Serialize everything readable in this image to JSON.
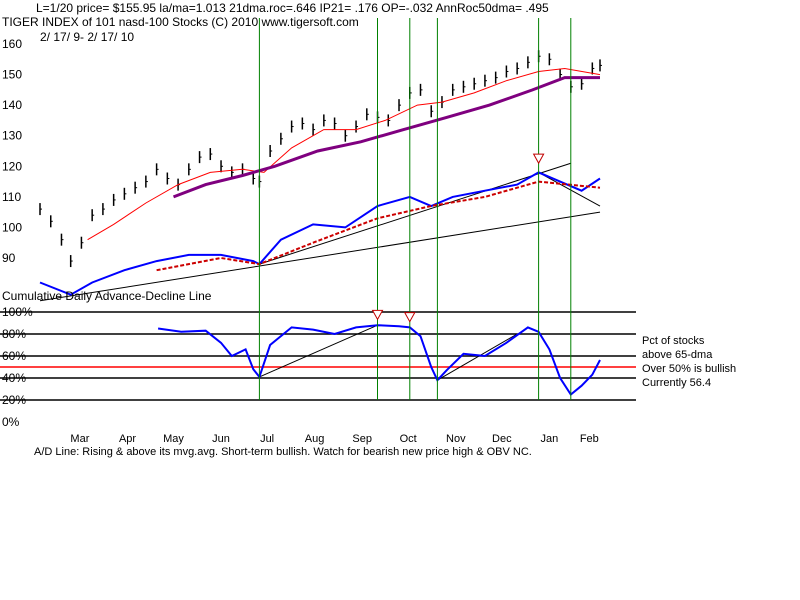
{
  "header": {
    "line1": "L=1/20  price= $155.95  la/ma=1.013 21dma.roc=.646 IP21= .176 OP=-.032 AnnRoc50dma= .495",
    "line2": "TIGER INDEX of  101 nasd-100 Stocks  (C) 2010  www.tigersoft.com",
    "line3": "2/ 17/ 9- 2/ 17/ 10"
  },
  "upper_panel": {
    "y_tick_labels": [
      "160",
      "150",
      "140",
      "130",
      "120",
      "110",
      "100",
      "90"
    ]
  },
  "lower_panel": {
    "title": "Cumulative Daily Advance-Decline Line",
    "y_tick_labels": [
      "100%",
      "80%",
      "60%",
      "40%",
      "20%",
      "0%"
    ],
    "annotations": [
      "Pct of stocks",
      "above 65-dma",
      "Over 50% is bullish",
      "Currently  56.4"
    ]
  },
  "x_axis": {
    "month_labels": [
      "Mar",
      "Apr",
      "May",
      "Jun",
      "Jul",
      "Aug",
      "Sep",
      "Oct",
      "Nov",
      "Dec",
      "Jan",
      "Feb"
    ]
  },
  "footer": "A/D Line: Rising & above its mvg.avg. Short-term bullish. Watch for bearish new price high & OBV NC.",
  "colors": {
    "price_bars": "#000000",
    "ma_21": "#ff0000",
    "ma_65": "#7f007f",
    "ad_line": "#0000ff",
    "ad_ma": "#cc0000",
    "pct_line": "#0000ff",
    "bullish_line": "#ff0000",
    "signal_lines": "#008000"
  },
  "chart_data": [
    {
      "type": "line",
      "panel": "upper",
      "title": "TIGER INDEX of  101 nasd-100 Stocks  (C) 2010  www.tigersoft.com",
      "x_range": [
        "2009-02-17",
        "2010-02-17"
      ],
      "ylim": [
        85,
        163
      ],
      "y_ticks": [
        90,
        100,
        110,
        120,
        130,
        140,
        150,
        160
      ],
      "series": [
        {
          "key": "price",
          "style": "hl-bars",
          "points": [
            [
              "2009-02-17",
              106
            ],
            [
              "2009-02-24",
              102
            ],
            [
              "2009-03-03",
              96
            ],
            [
              "2009-03-09",
              89
            ],
            [
              "2009-03-16",
              95
            ],
            [
              "2009-03-23",
              104
            ],
            [
              "2009-03-30",
              106
            ],
            [
              "2009-04-06",
              109
            ],
            [
              "2009-04-13",
              111
            ],
            [
              "2009-04-20",
              113
            ],
            [
              "2009-04-27",
              115
            ],
            [
              "2009-05-04",
              119
            ],
            [
              "2009-05-11",
              116
            ],
            [
              "2009-05-18",
              114
            ],
            [
              "2009-05-25",
              119
            ],
            [
              "2009-06-01",
              123
            ],
            [
              "2009-06-08",
              124
            ],
            [
              "2009-06-15",
              120
            ],
            [
              "2009-06-22",
              118
            ],
            [
              "2009-06-29",
              119
            ],
            [
              "2009-07-06",
              116
            ],
            [
              "2009-07-10",
              115
            ],
            [
              "2009-07-17",
              125
            ],
            [
              "2009-07-24",
              129
            ],
            [
              "2009-07-31",
              133
            ],
            [
              "2009-08-07",
              134
            ],
            [
              "2009-08-14",
              132
            ],
            [
              "2009-08-21",
              135
            ],
            [
              "2009-08-28",
              134
            ],
            [
              "2009-09-04",
              130
            ],
            [
              "2009-09-11",
              133
            ],
            [
              "2009-09-18",
              137
            ],
            [
              "2009-09-25",
              136
            ],
            [
              "2009-10-02",
              135
            ],
            [
              "2009-10-09",
              140
            ],
            [
              "2009-10-16",
              144
            ],
            [
              "2009-10-23",
              145
            ],
            [
              "2009-10-30",
              138
            ],
            [
              "2009-11-06",
              141
            ],
            [
              "2009-11-13",
              145
            ],
            [
              "2009-11-20",
              146
            ],
            [
              "2009-11-27",
              147
            ],
            [
              "2009-12-04",
              148
            ],
            [
              "2009-12-11",
              149
            ],
            [
              "2009-12-18",
              151
            ],
            [
              "2009-12-25",
              152
            ],
            [
              "2010-01-01",
              154
            ],
            [
              "2010-01-08",
              156
            ],
            [
              "2010-01-15",
              155
            ],
            [
              "2010-01-22",
              150
            ],
            [
              "2010-01-29",
              146
            ],
            [
              "2010-02-05",
              147
            ],
            [
              "2010-02-12",
              152
            ],
            [
              "2010-02-17",
              153
            ]
          ]
        },
        {
          "key": "ma21",
          "points": [
            [
              "2009-03-20",
              96
            ],
            [
              "2009-04-06",
              101
            ],
            [
              "2009-04-27",
              108
            ],
            [
              "2009-05-18",
              114
            ],
            [
              "2009-06-08",
              118
            ],
            [
              "2009-06-29",
              119
            ],
            [
              "2009-07-13",
              118
            ],
            [
              "2009-07-31",
              126
            ],
            [
              "2009-08-21",
              132
            ],
            [
              "2009-09-11",
              132
            ],
            [
              "2009-09-30",
              135
            ],
            [
              "2009-10-21",
              140
            ],
            [
              "2009-11-06",
              141
            ],
            [
              "2009-11-27",
              144
            ],
            [
              "2009-12-18",
              148
            ],
            [
              "2010-01-08",
              151
            ],
            [
              "2010-01-25",
              152
            ],
            [
              "2010-02-17",
              150
            ]
          ]
        },
        {
          "key": "ma65",
          "points": [
            [
              "2009-05-15",
              110
            ],
            [
              "2009-06-05",
              114
            ],
            [
              "2009-06-29",
              117
            ],
            [
              "2009-07-20",
              120
            ],
            [
              "2009-08-17",
              125
            ],
            [
              "2009-09-14",
              128
            ],
            [
              "2009-10-12",
              132
            ],
            [
              "2009-11-09",
              136
            ],
            [
              "2009-12-07",
              140
            ],
            [
              "2010-01-04",
              145
            ],
            [
              "2010-01-25",
              149
            ],
            [
              "2010-02-17",
              149
            ]
          ]
        },
        {
          "key": "ad",
          "points": [
            [
              "2009-02-17",
              82
            ],
            [
              "2009-03-09",
              78
            ],
            [
              "2009-03-23",
              82
            ],
            [
              "2009-04-13",
              86
            ],
            [
              "2009-05-04",
              89
            ],
            [
              "2009-05-25",
              91
            ],
            [
              "2009-06-15",
              91
            ],
            [
              "2009-07-06",
              89
            ],
            [
              "2009-07-10",
              88
            ],
            [
              "2009-07-24",
              96
            ],
            [
              "2009-08-14",
              101
            ],
            [
              "2009-09-04",
              100
            ],
            [
              "2009-09-25",
              107
            ],
            [
              "2009-10-16",
              110
            ],
            [
              "2009-10-30",
              107
            ],
            [
              "2009-11-13",
              110
            ],
            [
              "2009-12-04",
              112
            ],
            [
              "2009-12-25",
              114
            ],
            [
              "2010-01-08",
              118
            ],
            [
              "2010-01-22",
              115
            ],
            [
              "2010-02-05",
              112
            ],
            [
              "2010-02-17",
              116
            ]
          ]
        },
        {
          "key": "adma",
          "points": [
            [
              "2009-05-04",
              86
            ],
            [
              "2009-06-15",
              90
            ],
            [
              "2009-07-10",
              88
            ],
            [
              "2009-08-14",
              95
            ],
            [
              "2009-09-25",
              103
            ],
            [
              "2009-10-30",
              107
            ],
            [
              "2009-12-04",
              110
            ],
            [
              "2010-01-08",
              115
            ],
            [
              "2010-02-17",
              113
            ]
          ]
        }
      ]
    },
    {
      "type": "line",
      "panel": "lower",
      "title": "Cumulative Daily Advance-Decline Line",
      "x_range": [
        "2009-02-17",
        "2010-02-17"
      ],
      "ylim": [
        0,
        100
      ],
      "y_ticks": [
        0,
        20,
        40,
        60,
        80,
        100
      ],
      "series": [
        {
          "key": "pct",
          "points": [
            [
              "2009-05-05",
              85
            ],
            [
              "2009-05-20",
              82
            ],
            [
              "2009-06-05",
              83
            ],
            [
              "2009-06-15",
              72
            ],
            [
              "2009-06-22",
              60
            ],
            [
              "2009-07-01",
              66
            ],
            [
              "2009-07-06",
              48
            ],
            [
              "2009-07-10",
              41
            ],
            [
              "2009-07-17",
              70
            ],
            [
              "2009-07-31",
              86
            ],
            [
              "2009-08-14",
              84
            ],
            [
              "2009-08-28",
              80
            ],
            [
              "2009-09-11",
              86
            ],
            [
              "2009-09-25",
              88
            ],
            [
              "2009-10-09",
              87
            ],
            [
              "2009-10-16",
              86
            ],
            [
              "2009-10-23",
              78
            ],
            [
              "2009-10-30",
              50
            ],
            [
              "2009-11-03",
              38
            ],
            [
              "2009-11-09",
              47
            ],
            [
              "2009-11-20",
              62
            ],
            [
              "2009-12-04",
              60
            ],
            [
              "2009-12-18",
              72
            ],
            [
              "2010-01-01",
              86
            ],
            [
              "2010-01-08",
              82
            ],
            [
              "2010-01-15",
              66
            ],
            [
              "2010-01-22",
              40
            ],
            [
              "2010-01-29",
              25
            ],
            [
              "2010-02-05",
              33
            ],
            [
              "2010-02-12",
              43
            ],
            [
              "2010-02-17",
              56.4
            ]
          ]
        }
      ]
    }
  ]
}
